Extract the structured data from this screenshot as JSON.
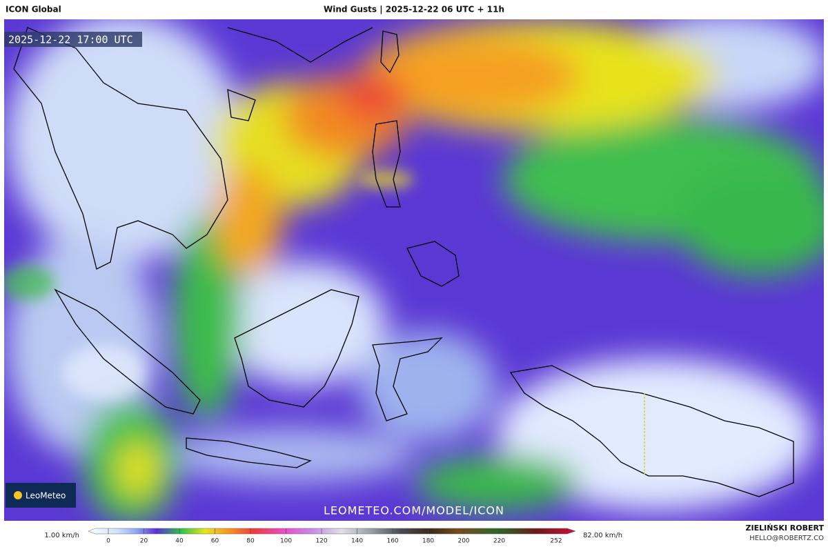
{
  "header": {
    "model": "ICON Global",
    "title": "Wind Gusts | 2025-12-22 06 UTC + 11h"
  },
  "map": {
    "timestamp": "2025-12-22 17:00 UTC",
    "logo": "LeoMeteo",
    "watermark": "LEOMETEO.COM/MODEL/ICON"
  },
  "colorbar": {
    "min_label": "1.00 km/h",
    "max_label": "82.00 km/h",
    "range": [
      0,
      252
    ],
    "ticks": [
      0,
      20,
      40,
      60,
      80,
      100,
      120,
      140,
      160,
      180,
      200,
      220,
      252
    ]
  },
  "footer": {
    "author": "ZIELIŃSKI ROBERT",
    "email": "HELLO@ROBERTZ.CO"
  }
}
